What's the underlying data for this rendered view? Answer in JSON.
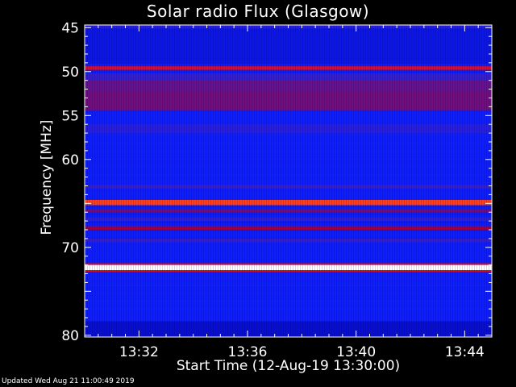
{
  "chart_data": {
    "type": "heatmap",
    "title": "Solar radio Flux (Glasgow)",
    "xlabel": "Start Time (12-Aug-19 13:30:00)",
    "ylabel": "Frequency [MHz]",
    "x_tick_labels": [
      "13:32",
      "13:36",
      "13:40",
      "13:44"
    ],
    "x_ticks_minutes": [
      2,
      6,
      10,
      14
    ],
    "xlim_minutes": [
      0,
      15
    ],
    "y_ticks": [
      45,
      50,
      55,
      60,
      65,
      70,
      75,
      80
    ],
    "y_tick_labels": [
      "45",
      "50",
      "55",
      "60",
      "",
      "70",
      "",
      "80"
    ],
    "ylim": [
      44.7,
      80.2
    ],
    "y_inverted": true,
    "colormap": [
      "#0000a0",
      "#1020ff",
      "#4020c0",
      "#a00040",
      "#ff1010",
      "#ffff40",
      "#ffffff"
    ],
    "bands": [
      {
        "from": 44.7,
        "to": 45.1,
        "level": 0.25
      },
      {
        "from": 45.1,
        "to": 49.1,
        "level": 0.12
      },
      {
        "from": 49.4,
        "to": 49.8,
        "level": 0.62
      },
      {
        "from": 50.2,
        "to": 51.0,
        "level": 0.3
      },
      {
        "from": 51.0,
        "to": 52.3,
        "level": 0.4
      },
      {
        "from": 52.3,
        "to": 54.4,
        "level": 0.42
      },
      {
        "from": 56.0,
        "to": 57.0,
        "level": 0.25
      },
      {
        "from": 62.9,
        "to": 63.3,
        "level": 0.3
      },
      {
        "from": 64.6,
        "to": 65.2,
        "level": 0.7
      },
      {
        "from": 65.7,
        "to": 66.0,
        "level": 0.42
      },
      {
        "from": 66.6,
        "to": 67.0,
        "level": 0.28
      },
      {
        "from": 67.6,
        "to": 68.0,
        "level": 0.5
      },
      {
        "from": 69.0,
        "to": 69.4,
        "level": 0.3
      },
      {
        "from": 71.8,
        "to": 72.0,
        "level": 0.6
      },
      {
        "from": 72.0,
        "to": 72.6,
        "level": 1.0
      },
      {
        "from": 72.6,
        "to": 72.8,
        "level": 0.6
      },
      {
        "from": 78.4,
        "to": 80.2,
        "level": 0.08
      }
    ]
  },
  "footer": "Updated Wed Aug 21 11:00:49 2019"
}
